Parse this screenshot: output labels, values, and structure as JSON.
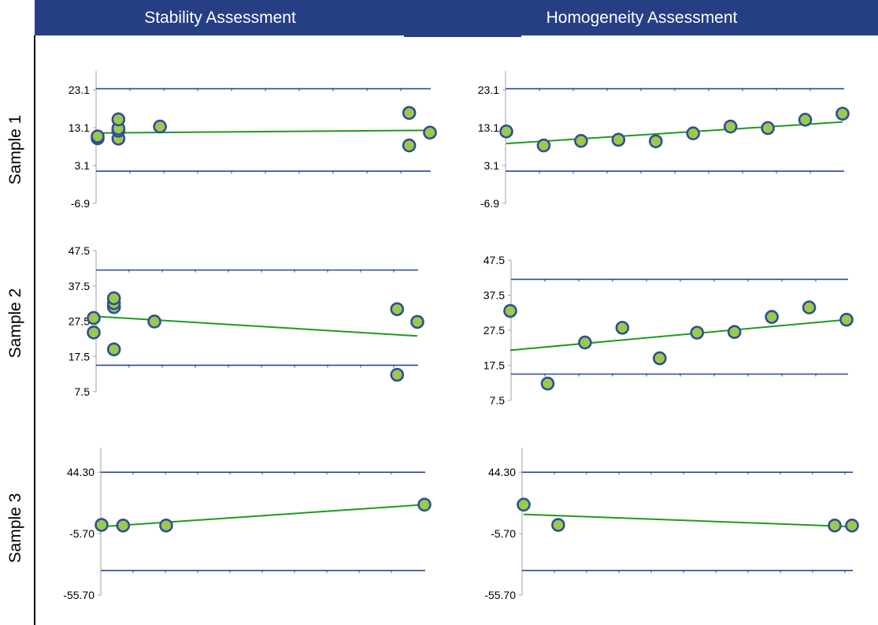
{
  "header": {
    "left_title": "Stability Assessment",
    "right_title": "Homogeneity Assessment"
  },
  "rows": [
    {
      "label": "Sample 1"
    },
    {
      "label": "Sample 2"
    },
    {
      "label": "Sample 3"
    }
  ],
  "colors": {
    "header_bg": "#263f84",
    "limit_line": "#2b4a96",
    "trend_line": "#1e9a1e",
    "marker_fill": "#9dc94a",
    "marker_stroke": "#2d4f9a",
    "axis": "#a0a0a0"
  },
  "chart_data": [
    {
      "id": "stability-sample-1",
      "type": "scatter",
      "yticks": [
        "-6.9",
        "3.1",
        "13.1",
        "23.1"
      ],
      "ylim": [
        -6.9,
        28.1
      ],
      "upper_limit": 23.4,
      "lower_limit": 1.6,
      "points": [
        {
          "x": 0.0,
          "y": 10.3
        },
        {
          "x": 0.0,
          "y": 10.8
        },
        {
          "x": 0.5,
          "y": 10.2
        },
        {
          "x": 0.5,
          "y": 12.3
        },
        {
          "x": 0.5,
          "y": 12.9
        },
        {
          "x": 0.5,
          "y": 15.3
        },
        {
          "x": 1.5,
          "y": 13.4
        },
        {
          "x": 7.5,
          "y": 17.0
        },
        {
          "x": 7.5,
          "y": 8.4
        },
        {
          "x": 8.0,
          "y": 11.8
        }
      ],
      "trend": [
        {
          "x": 0.0,
          "y": 11.7
        },
        {
          "x": 8.0,
          "y": 12.4
        }
      ]
    },
    {
      "id": "homogeneity-sample-1",
      "type": "scatter",
      "yticks": [
        "-6.9",
        "3.1",
        "13.1",
        "23.1"
      ],
      "ylim": [
        -6.9,
        28.1
      ],
      "upper_limit": 23.4,
      "lower_limit": 1.6,
      "points": [
        {
          "x": 1,
          "y": 12.1
        },
        {
          "x": 2,
          "y": 8.4
        },
        {
          "x": 3,
          "y": 9.6
        },
        {
          "x": 4,
          "y": 9.9
        },
        {
          "x": 5,
          "y": 9.5
        },
        {
          "x": 6,
          "y": 11.6
        },
        {
          "x": 7,
          "y": 13.4
        },
        {
          "x": 8,
          "y": 13.0
        },
        {
          "x": 9,
          "y": 15.2
        },
        {
          "x": 10,
          "y": 16.8
        }
      ],
      "trend": [
        {
          "x": 1,
          "y": 8.9
        },
        {
          "x": 10,
          "y": 14.6
        }
      ]
    },
    {
      "id": "stability-sample-2",
      "type": "scatter",
      "yticks": [
        "7.5",
        "17.5",
        "27.5",
        "37.5",
        "47.5"
      ],
      "ylim": [
        7.5,
        47.5
      ],
      "upper_limit": 42.0,
      "lower_limit": 15.0,
      "points": [
        {
          "x": 0.0,
          "y": 28.4
        },
        {
          "x": 0.0,
          "y": 24.3
        },
        {
          "x": 0.5,
          "y": 31.5
        },
        {
          "x": 0.5,
          "y": 32.6
        },
        {
          "x": 0.5,
          "y": 34.0
        },
        {
          "x": 0.5,
          "y": 19.5
        },
        {
          "x": 1.5,
          "y": 27.4
        },
        {
          "x": 7.5,
          "y": 30.9
        },
        {
          "x": 7.5,
          "y": 12.3
        },
        {
          "x": 8.0,
          "y": 27.3
        }
      ],
      "trend": [
        {
          "x": 0.0,
          "y": 28.9
        },
        {
          "x": 8.0,
          "y": 23.3
        }
      ]
    },
    {
      "id": "homogeneity-sample-2",
      "type": "scatter",
      "yticks": [
        "7.5",
        "17.5",
        "27.5",
        "37.5",
        "47.5"
      ],
      "ylim": [
        7.5,
        47.5
      ],
      "upper_limit": 42.0,
      "lower_limit": 15.0,
      "points": [
        {
          "x": 1,
          "y": 33.0
        },
        {
          "x": 2,
          "y": 12.3
        },
        {
          "x": 3,
          "y": 24.0
        },
        {
          "x": 4,
          "y": 28.2
        },
        {
          "x": 5,
          "y": 19.5
        },
        {
          "x": 6,
          "y": 26.8
        },
        {
          "x": 7,
          "y": 27.0
        },
        {
          "x": 8,
          "y": 31.3
        },
        {
          "x": 9,
          "y": 34.0
        },
        {
          "x": 10,
          "y": 30.5
        }
      ],
      "trend": [
        {
          "x": 1,
          "y": 21.8
        },
        {
          "x": 10,
          "y": 30.5
        }
      ]
    },
    {
      "id": "stability-sample-3",
      "type": "scatter",
      "yticks": [
        "-55.70",
        "-5.70",
        "44.30"
      ],
      "ylim": [
        -55.7,
        64.3
      ],
      "upper_limit": 44.3,
      "lower_limit": -35.7,
      "points": [
        {
          "x": 0.0,
          "y": 1.4
        },
        {
          "x": 0.5,
          "y": 0.9
        },
        {
          "x": 1.5,
          "y": 0.9
        },
        {
          "x": 7.5,
          "y": 17.9
        }
      ],
      "trend": [
        {
          "x": 0.0,
          "y": 0.0
        },
        {
          "x": 7.5,
          "y": 17.9
        }
      ]
    },
    {
      "id": "homogeneity-sample-3",
      "type": "scatter",
      "yticks": [
        "-55.70",
        "-5.70",
        "44.30"
      ],
      "ylim": [
        -55.7,
        64.3
      ],
      "upper_limit": 44.3,
      "lower_limit": -35.7,
      "points": [
        {
          "x": 1,
          "y": 17.9
        },
        {
          "x": 2,
          "y": 1.4
        },
        {
          "x": 10,
          "y": 0.9
        },
        {
          "x": 10.5,
          "y": 0.9
        }
      ],
      "trend": [
        {
          "x": 1,
          "y": 10.0
        },
        {
          "x": 10.5,
          "y": 0.0
        }
      ]
    }
  ]
}
